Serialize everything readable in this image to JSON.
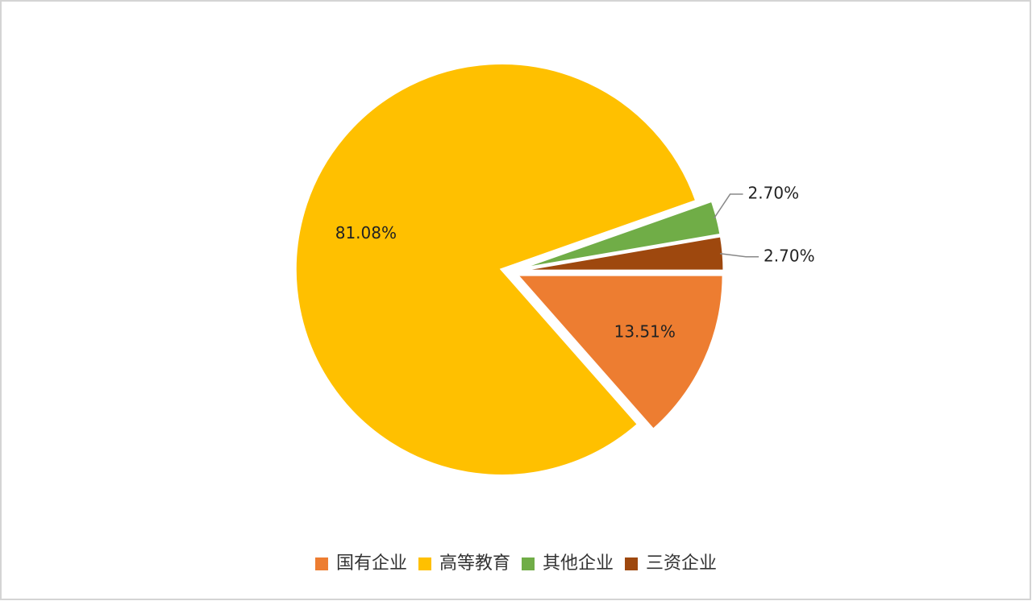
{
  "chart_data": {
    "type": "pie",
    "categories": [
      "国有企业",
      "高等教育",
      "其他企业",
      "三资企业"
    ],
    "values": [
      13.51,
      81.08,
      2.7,
      2.7
    ],
    "value_labels": [
      "13.51%",
      "81.08%",
      "2.70%",
      "2.70%"
    ],
    "colors": [
      "#ED7D31",
      "#FFC000",
      "#70AD47",
      "#9E480E"
    ],
    "legend": "bottom"
  }
}
